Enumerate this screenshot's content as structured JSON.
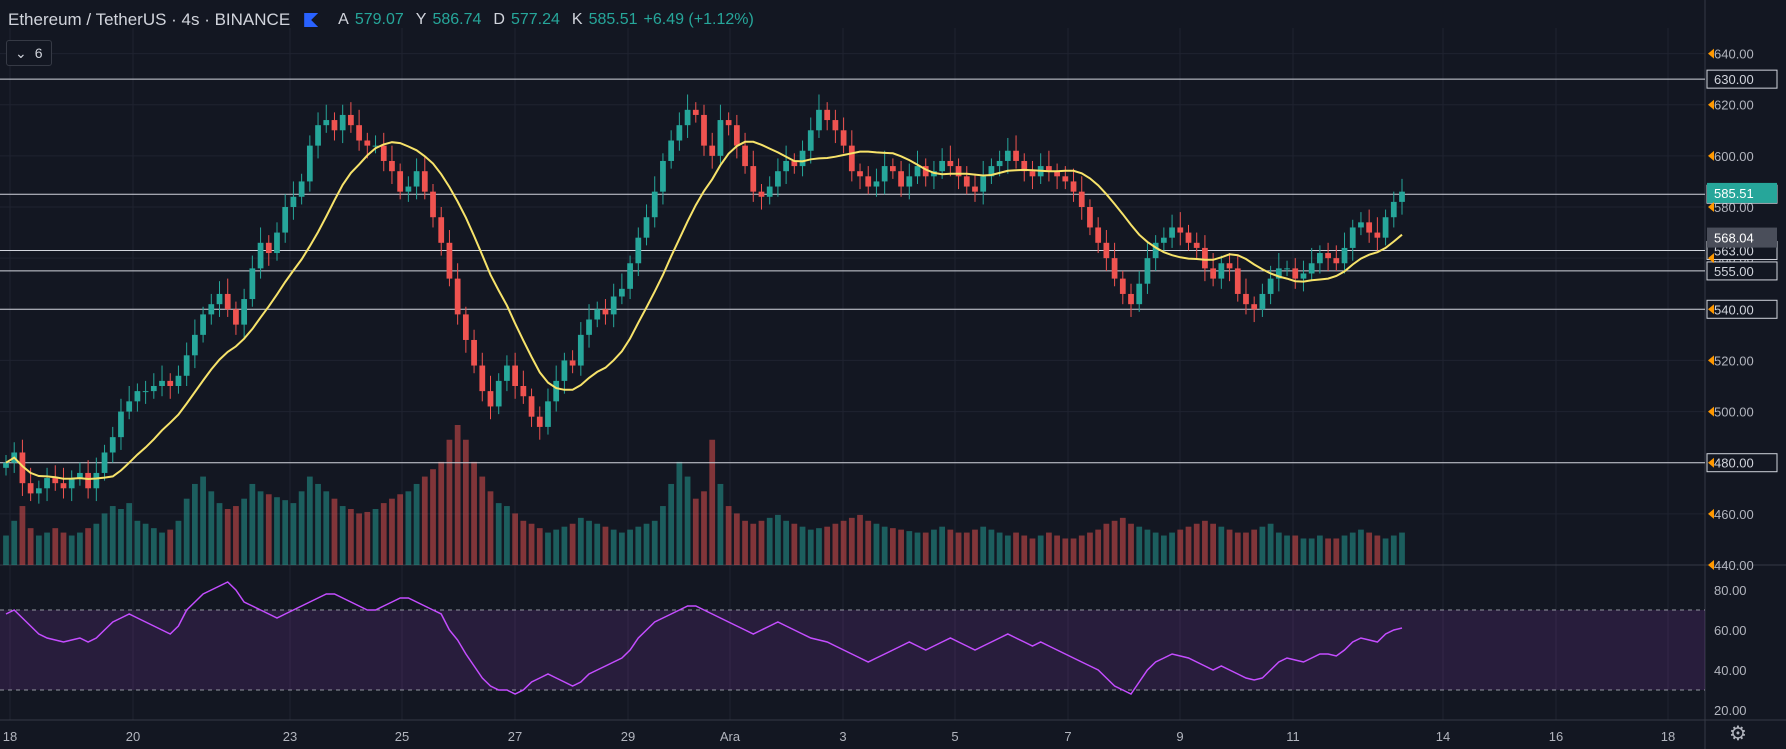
{
  "header": {
    "symbol": "Ethereum / TetherUS · 4s · BINANCE",
    "ohlc": [
      {
        "key": "A",
        "value": "579.07"
      },
      {
        "key": "Y",
        "value": "586.74"
      },
      {
        "key": "D",
        "value": "577.24"
      },
      {
        "key": "K",
        "value": "585.51"
      }
    ],
    "change": "+6.49 (+1.12%)"
  },
  "indicator_toggle": {
    "count": "6"
  },
  "colors": {
    "up": "#26a69a",
    "down": "#ef5350",
    "ma": "#f7e36a",
    "rsi": "#c44dff",
    "bg": "#131722"
  },
  "chart_data": {
    "type": "candlestick",
    "x_ticks": [
      "18",
      "20",
      "23",
      "25",
      "27",
      "29",
      "Ara",
      "3",
      "5",
      "7",
      "9",
      "11",
      "14",
      "16",
      "18"
    ],
    "y_ticks": [
      "640.00",
      "620.00",
      "600.00",
      "580.00",
      "560.00",
      "540.00",
      "520.00",
      "500.00",
      "480.00",
      "460.00",
      "440.00"
    ],
    "ylim": [
      440,
      650
    ],
    "horizontal_levels": [
      "630.00",
      "585.00",
      "563.00",
      "555.00",
      "540.00",
      "480.00"
    ],
    "last_price": "585.51",
    "ma_last": "568.04",
    "closes": [
      480,
      484,
      472,
      468,
      470,
      474,
      472,
      470,
      474,
      476,
      470,
      476,
      484,
      490,
      500,
      504,
      508,
      508,
      510,
      512,
      510,
      514,
      522,
      530,
      538,
      542,
      546,
      540,
      534,
      544,
      556,
      566,
      562,
      570,
      580,
      584,
      590,
      604,
      612,
      614,
      610,
      616,
      612,
      606,
      604,
      604,
      598,
      594,
      586,
      588,
      594,
      586,
      576,
      566,
      552,
      538,
      528,
      518,
      508,
      502,
      512,
      518,
      510,
      506,
      498,
      494,
      504,
      512,
      520,
      518,
      530,
      536,
      540,
      538,
      545,
      548,
      558,
      568,
      576,
      586,
      598,
      606,
      612,
      618,
      616,
      604,
      600,
      614,
      612,
      604,
      596,
      586,
      584,
      588,
      594,
      598,
      596,
      602,
      610,
      618,
      614,
      610,
      604,
      594,
      592,
      588,
      590,
      596,
      594,
      588,
      592,
      596,
      592,
      594,
      598,
      596,
      592,
      588,
      586,
      592,
      596,
      598,
      602,
      598,
      594,
      592,
      596,
      594,
      592,
      590,
      586,
      580,
      572,
      566,
      560,
      552,
      546,
      542,
      550,
      560,
      566,
      568,
      572,
      570,
      566,
      564,
      556,
      552,
      558,
      556,
      546,
      542,
      540,
      546,
      552,
      556,
      556,
      552,
      554,
      558,
      562,
      560,
      558,
      564,
      572,
      574,
      570,
      568,
      576,
      582,
      586
    ],
    "volumes": [
      20,
      30,
      40,
      25,
      20,
      22,
      25,
      22,
      20,
      22,
      25,
      28,
      35,
      40,
      38,
      42,
      30,
      28,
      25,
      22,
      24,
      30,
      45,
      55,
      60,
      50,
      42,
      38,
      40,
      45,
      55,
      50,
      48,
      46,
      44,
      42,
      50,
      60,
      55,
      50,
      45,
      40,
      38,
      35,
      36,
      38,
      42,
      45,
      48,
      50,
      55,
      60,
      65,
      70,
      85,
      95,
      85,
      70,
      60,
      50,
      42,
      40,
      35,
      30,
      28,
      25,
      22,
      24,
      26,
      28,
      32,
      30,
      28,
      26,
      24,
      22,
      24,
      26,
      28,
      30,
      40,
      55,
      70,
      60,
      45,
      50,
      85,
      55,
      40,
      35,
      30,
      28,
      30,
      32,
      34,
      30,
      28,
      26,
      24,
      25,
      26,
      28,
      30,
      32,
      34,
      30,
      28,
      26,
      25,
      24,
      23,
      22,
      22,
      24,
      26,
      24,
      22,
      22,
      24,
      26,
      24,
      22,
      20,
      22,
      20,
      18,
      20,
      22,
      20,
      18,
      18,
      20,
      22,
      24,
      28,
      30,
      32,
      28,
      26,
      24,
      22,
      20,
      22,
      24,
      26,
      28,
      30,
      28,
      26,
      24,
      22,
      22,
      24,
      26,
      28,
      22,
      20,
      20,
      18,
      18,
      20,
      18,
      18,
      20,
      22,
      24,
      22,
      20,
      18,
      20,
      22
    ],
    "rsi": {
      "y_ticks": [
        "80.00",
        "60.00",
        "40.00",
        "20.00"
      ],
      "ylim": [
        15,
        90
      ],
      "bands": [
        70,
        30
      ],
      "values": [
        68,
        70,
        66,
        62,
        58,
        56,
        55,
        54,
        55,
        56,
        54,
        56,
        60,
        64,
        66,
        68,
        66,
        64,
        62,
        60,
        58,
        62,
        70,
        74,
        78,
        80,
        82,
        84,
        80,
        74,
        72,
        70,
        68,
        66,
        68,
        70,
        72,
        74,
        76,
        78,
        78,
        76,
        74,
        72,
        70,
        70,
        72,
        74,
        76,
        76,
        74,
        72,
        70,
        68,
        60,
        55,
        48,
        42,
        36,
        32,
        30,
        30,
        28,
        30,
        34,
        36,
        38,
        36,
        34,
        32,
        34,
        38,
        40,
        42,
        44,
        46,
        50,
        56,
        60,
        64,
        66,
        68,
        70,
        72,
        72,
        70,
        68,
        66,
        64,
        62,
        60,
        58,
        60,
        62,
        64,
        62,
        60,
        58,
        56,
        55,
        54,
        52,
        50,
        48,
        46,
        44,
        46,
        48,
        50,
        52,
        54,
        52,
        50,
        52,
        54,
        56,
        54,
        52,
        50,
        52,
        54,
        56,
        58,
        56,
        54,
        52,
        54,
        52,
        50,
        48,
        46,
        44,
        42,
        40,
        36,
        32,
        30,
        28,
        34,
        40,
        44,
        46,
        48,
        47,
        46,
        44,
        42,
        40,
        42,
        40,
        38,
        36,
        35,
        36,
        40,
        44,
        46,
        45,
        44,
        46,
        48,
        48,
        47,
        50,
        54,
        56,
        55,
        54,
        58,
        60,
        61
      ]
    }
  }
}
